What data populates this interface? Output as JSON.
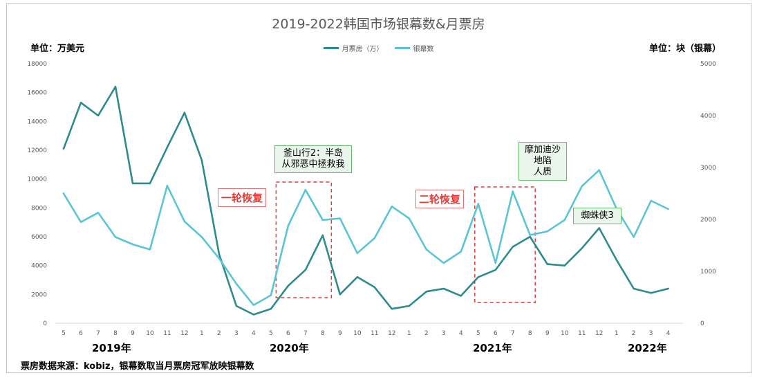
{
  "chart_data": {
    "type": "line",
    "title": "2019-2022韩国市场银幕数&月票房",
    "left_unit": "单位：万美元",
    "right_unit": "单位：块（银幕）",
    "x": [
      "5",
      "6",
      "7",
      "8",
      "9",
      "10",
      "11",
      "12",
      "1",
      "2",
      "3",
      "4",
      "5",
      "6",
      "7",
      "8",
      "9",
      "10",
      "11",
      "12",
      "1",
      "2",
      "3",
      "4",
      "5",
      "6",
      "7",
      "8",
      "9",
      "10",
      "11",
      "12",
      "1",
      "2",
      "3",
      "4"
    ],
    "year_labels": [
      "2019年",
      "2020年",
      "2021年",
      "2022年"
    ],
    "y_left": {
      "min": 0,
      "max": 18000,
      "ticks": [
        "0",
        "2000",
        "4000",
        "6000",
        "8000",
        "10000",
        "12000",
        "14000",
        "16000",
        "18000"
      ]
    },
    "y_right": {
      "min": 0,
      "max": 5000,
      "ticks": [
        "0",
        "1000",
        "2000",
        "3000",
        "4000",
        "5000"
      ]
    },
    "series": [
      {
        "name": "月票房（万）",
        "axis": "left",
        "color": "#2e8b8b",
        "values": [
          12100,
          15300,
          14400,
          16400,
          9700,
          9700,
          12200,
          14600,
          11300,
          4800,
          1200,
          600,
          1000,
          2600,
          3700,
          6100,
          2000,
          3200,
          2500,
          1000,
          1200,
          2200,
          2400,
          1900,
          3200,
          3700,
          5300,
          6000,
          4100,
          4000,
          5200,
          6600,
          4400,
          2400,
          2100,
          2400
        ]
      },
      {
        "name": "银幕数",
        "axis": "right",
        "color": "#5bc4d6",
        "values": [
          2500,
          1950,
          2130,
          1660,
          1520,
          1420,
          2650,
          1960,
          1660,
          1250,
          760,
          350,
          540,
          1880,
          2570,
          1990,
          2020,
          1350,
          1640,
          2250,
          2020,
          1420,
          1160,
          1380,
          2300,
          1160,
          2540,
          1700,
          1770,
          1990,
          2640,
          2950,
          2210,
          1660,
          2360,
          2200
        ]
      }
    ],
    "annotations": [
      {
        "text": "釜山行2：半岛\n从邪恶中拯救我"
      },
      {
        "text": "摩加迪沙\n地陷\n人质"
      },
      {
        "text": "蜘蛛侠3"
      }
    ],
    "recovery_labels": [
      "一轮恢复",
      "二轮恢复"
    ],
    "source": "票房数据来源：kobiz，银幕数取当月票房冠军放映银幕数"
  }
}
